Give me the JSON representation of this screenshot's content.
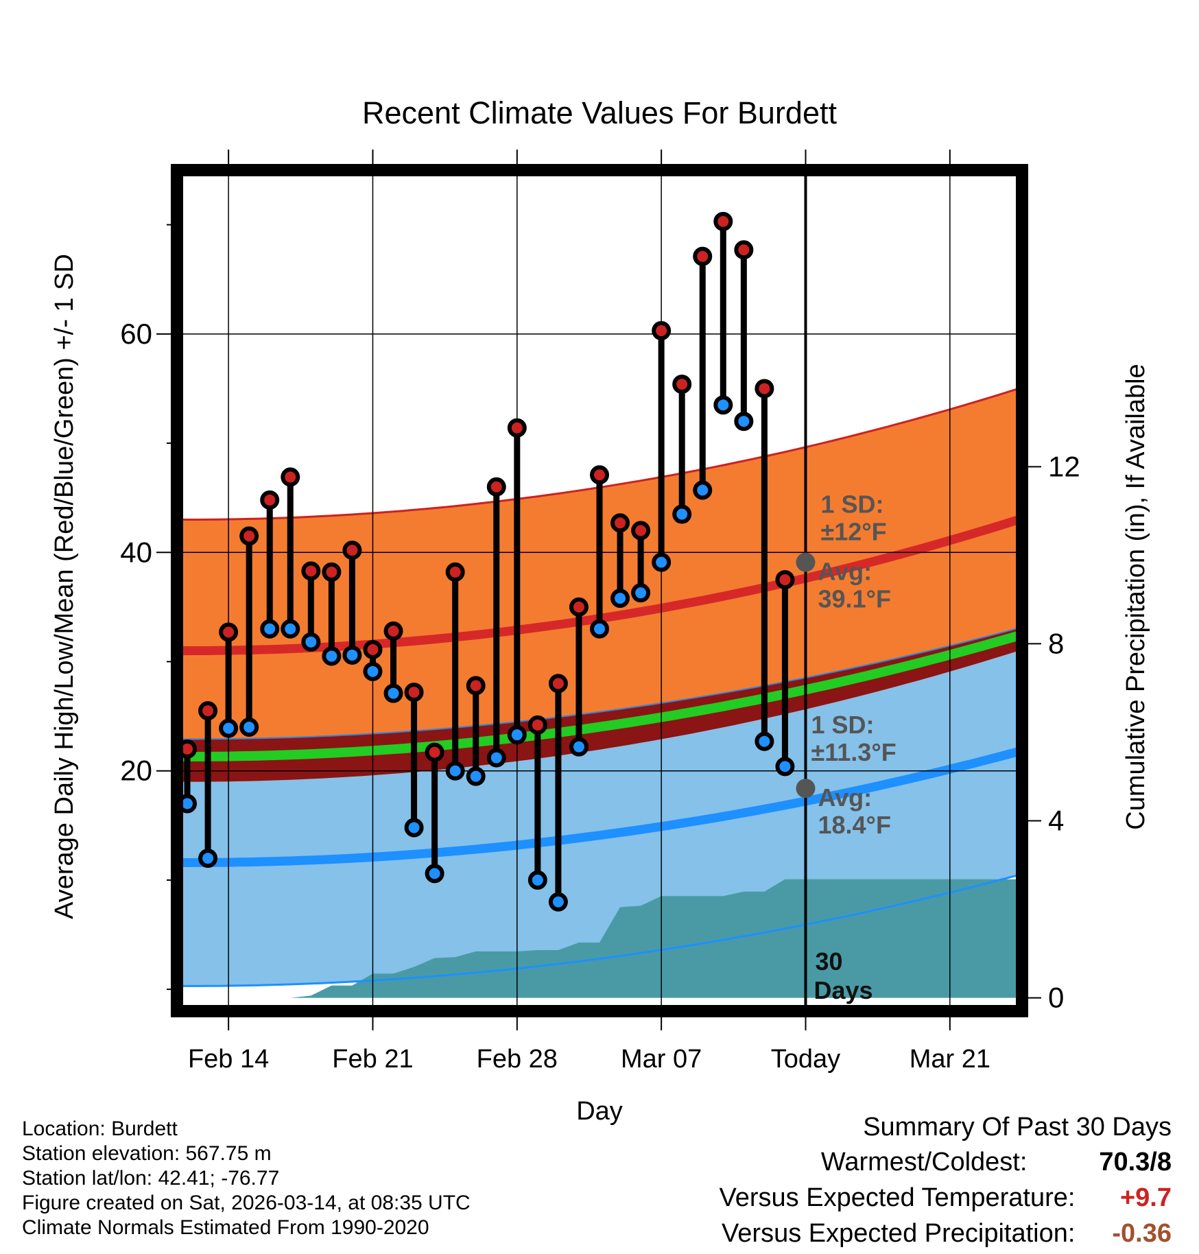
{
  "chart_data": {
    "type": "line",
    "title": "Recent Climate Values For Burdett",
    "xlabel": "Day",
    "ylabel": "Average Daily High/Low/Mean (Red/Blue/Green) +/- 1 SD",
    "y2label": "Cumulative Precipitation (in), If Available",
    "x_range_days": [
      -0.5,
      40.5
    ],
    "ylim": [
      -2,
      75
    ],
    "y2lim": [
      -0.3,
      18.7
    ],
    "x_ticks": [
      {
        "day": 2,
        "label": "Feb 14"
      },
      {
        "day": 9,
        "label": "Feb 21"
      },
      {
        "day": 16,
        "label": "Feb 28"
      },
      {
        "day": 23,
        "label": "Mar 07"
      },
      {
        "day": 30,
        "label": "Today"
      },
      {
        "day": 37,
        "label": "Mar 21"
      }
    ],
    "y_ticks": [
      20,
      40,
      60
    ],
    "y_minor_ticks": [
      0,
      10,
      30,
      50,
      70
    ],
    "y2_ticks": [
      0,
      4,
      8,
      12
    ],
    "today_day": 30,
    "today_label": [
      "30",
      "Days"
    ],
    "normals": {
      "high_avg": {
        "day_first": 0,
        "value_first": 31.0,
        "day_today": 30,
        "value_today": 39.1,
        "day_last": 40,
        "value_last": 42.8
      },
      "high_sd": 12,
      "low_avg": {
        "day_first": 0,
        "value_first": 11.6,
        "day_today": 30,
        "value_today": 18.4,
        "day_last": 40,
        "value_last": 21.6
      },
      "low_sd": 11.3,
      "mean_avg": {
        "day_first": 0,
        "value_first": 21.3,
        "day_last": 40,
        "value_last": 32.2
      }
    },
    "annotations": {
      "high_sd_label": [
        "1 SD:",
        "±12°F"
      ],
      "high_avg_label": [
        "Avg:",
        "39.1°F"
      ],
      "low_sd_label": [
        "1 SD:",
        "±11.3°F"
      ],
      "low_avg_label": [
        "Avg:",
        "18.4°F"
      ]
    },
    "series": [
      {
        "name": "Daily High",
        "color": "#cc2222",
        "values": [
          22,
          25.5,
          32.7,
          41.5,
          44.8,
          46.9,
          38.3,
          38.2,
          40.2,
          31.1,
          32.8,
          27.2,
          21.7,
          38.2,
          27.8,
          46,
          51.4,
          24.2,
          28,
          35,
          47.1,
          42.7,
          42,
          60.3,
          55.4,
          67.1,
          70.3,
          67.7,
          55,
          37.5
        ]
      },
      {
        "name": "Daily Low",
        "color": "#1e90ff",
        "values": [
          17,
          12,
          23.9,
          24,
          33,
          33,
          31.8,
          30.5,
          30.6,
          29.1,
          27.1,
          14.8,
          10.6,
          20,
          19.5,
          21.2,
          23.3,
          10,
          8,
          22.2,
          33,
          35.8,
          36.3,
          39.1,
          43.5,
          45.7,
          53.5,
          52,
          22.7,
          20.4
        ]
      },
      {
        "name": "Cumulative Precipitation (in)",
        "color": "#4a9aa5",
        "axis": "y2",
        "values": [
          0,
          0,
          0,
          0,
          0,
          0,
          0.05,
          0.28,
          0.28,
          0.55,
          0.55,
          0.7,
          0.9,
          0.92,
          1.05,
          1.05,
          1.05,
          1.08,
          1.08,
          1.25,
          1.25,
          2.05,
          2.08,
          2.3,
          2.3,
          2.3,
          2.3,
          2.4,
          2.4,
          2.68,
          2.68
        ]
      }
    ]
  },
  "info": {
    "location": "Location: Burdett",
    "elevation": "Station elevation: 567.75 m",
    "latlon": "Station lat/lon: 42.41; -76.77",
    "created": "Figure created on Sat, 2026-03-14, at 08:35 UTC",
    "normals": "Climate Normals Estimated From 1990-2020"
  },
  "summary": {
    "title": "Summary Of Past 30 Days",
    "warm_cold_label": "Warmest/Coldest:",
    "warm_cold_value": "70.3/8",
    "temp_label": "Versus Expected Temperature:",
    "temp_value": "+9.7",
    "temp_color": "#cc2222",
    "precip_label": "Versus Expected Precipitation:",
    "precip_value": "-0.36",
    "precip_color": "#a0522d"
  }
}
